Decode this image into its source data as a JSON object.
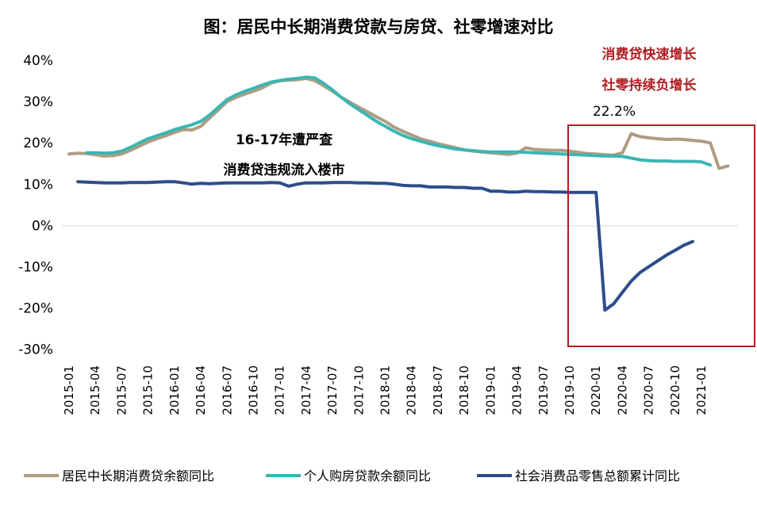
{
  "chart_data": {
    "type": "line",
    "title": "图：居民中长期消费贷款与房贷、社零增速对比",
    "xlabel": "",
    "ylabel": "",
    "ylim": [
      -30,
      40
    ],
    "yticks": [
      "40%",
      "30%",
      "20%",
      "10%",
      "0%",
      "-10%",
      "-20%",
      "-30%"
    ],
    "ytick_values": [
      40,
      30,
      20,
      10,
      0,
      -10,
      -20,
      -30
    ],
    "x_start": "2015-01",
    "x_months": 75,
    "xtick_labels": [
      "2015-01",
      "2015-04",
      "2015-07",
      "2015-10",
      "2016-01",
      "2016-04",
      "2016-07",
      "2016-10",
      "2017-01",
      "2017-04",
      "2017-07",
      "2017-10",
      "2018-01",
      "2018-04",
      "2018-07",
      "2018-10",
      "2019-01",
      "2019-04",
      "2019-07",
      "2019-10",
      "2020-01",
      "2020-04",
      "2020-07",
      "2020-10",
      "2021-01"
    ],
    "series": [
      {
        "name": "居民中长期消费贷余额同比",
        "color": "#b09c82",
        "points": [
          [
            0,
            17.3
          ],
          [
            1,
            17.5
          ],
          [
            2,
            17.4
          ],
          [
            3,
            17.1
          ],
          [
            4,
            16.8
          ],
          [
            5,
            16.9
          ],
          [
            6,
            17.3
          ],
          [
            7,
            18.2
          ],
          [
            8,
            19.2
          ],
          [
            9,
            20.2
          ],
          [
            10,
            21.0
          ],
          [
            11,
            21.7
          ],
          [
            12,
            22.5
          ],
          [
            13,
            23.2
          ],
          [
            14,
            23.1
          ],
          [
            15,
            24.0
          ],
          [
            16,
            26.0
          ],
          [
            17,
            28.0
          ],
          [
            18,
            30.0
          ],
          [
            19,
            31.0
          ],
          [
            20,
            31.8
          ],
          [
            21,
            32.5
          ],
          [
            22,
            33.3
          ],
          [
            23,
            34.5
          ],
          [
            24,
            35.0
          ],
          [
            25,
            35.2
          ],
          [
            26,
            35.3
          ],
          [
            27,
            35.6
          ],
          [
            28,
            35.0
          ],
          [
            29,
            33.8
          ],
          [
            30,
            32.5
          ],
          [
            31,
            31.0
          ],
          [
            32,
            29.8
          ],
          [
            33,
            28.6
          ],
          [
            34,
            27.5
          ],
          [
            35,
            26.3
          ],
          [
            36,
            25.2
          ],
          [
            37,
            23.8
          ],
          [
            38,
            22.8
          ],
          [
            39,
            21.9
          ],
          [
            40,
            21.0
          ],
          [
            41,
            20.4
          ],
          [
            42,
            19.8
          ],
          [
            43,
            19.3
          ],
          [
            44,
            18.8
          ],
          [
            45,
            18.3
          ],
          [
            46,
            18.0
          ],
          [
            47,
            17.8
          ],
          [
            48,
            17.6
          ],
          [
            49,
            17.4
          ],
          [
            50,
            17.2
          ],
          [
            51,
            17.5
          ],
          [
            52,
            18.8
          ],
          [
            53,
            18.4
          ],
          [
            54,
            18.3
          ],
          [
            55,
            18.2
          ],
          [
            56,
            18.2
          ],
          [
            57,
            18.0
          ],
          [
            58,
            17.7
          ],
          [
            59,
            17.4
          ],
          [
            60,
            17.3
          ],
          [
            61,
            17.1
          ],
          [
            62,
            17.0
          ],
          [
            63,
            17.6
          ],
          [
            64,
            22.2
          ],
          [
            65,
            21.5
          ],
          [
            66,
            21.2
          ],
          [
            67,
            21.0
          ],
          [
            68,
            20.8
          ],
          [
            69,
            20.9
          ],
          [
            70,
            20.8
          ],
          [
            71,
            20.6
          ],
          [
            72,
            20.4
          ],
          [
            73,
            20.0
          ],
          [
            74,
            13.8
          ],
          [
            75,
            14.4
          ]
        ]
      },
      {
        "name": "个人购房贷款余额同比",
        "color": "#3bb6b2",
        "points": [
          [
            2,
            17.6
          ],
          [
            3,
            17.6
          ],
          [
            4,
            17.5
          ],
          [
            5,
            17.6
          ],
          [
            6,
            18.0
          ],
          [
            7,
            18.9
          ],
          [
            8,
            20.0
          ],
          [
            9,
            21.0
          ],
          [
            10,
            21.7
          ],
          [
            11,
            22.4
          ],
          [
            12,
            23.2
          ],
          [
            13,
            23.8
          ],
          [
            14,
            24.4
          ],
          [
            15,
            25.2
          ],
          [
            16,
            26.7
          ],
          [
            17,
            28.6
          ],
          [
            18,
            30.5
          ],
          [
            19,
            31.6
          ],
          [
            20,
            32.5
          ],
          [
            21,
            33.2
          ],
          [
            22,
            34.0
          ],
          [
            23,
            34.7
          ],
          [
            24,
            35.1
          ],
          [
            25,
            35.4
          ],
          [
            26,
            35.6
          ],
          [
            27,
            35.9
          ],
          [
            28,
            35.7
          ],
          [
            29,
            34.4
          ],
          [
            30,
            32.8
          ],
          [
            31,
            31.0
          ],
          [
            32,
            29.4
          ],
          [
            33,
            28.0
          ],
          [
            34,
            26.6
          ],
          [
            35,
            25.2
          ],
          [
            36,
            24.0
          ],
          [
            37,
            22.8
          ],
          [
            38,
            21.8
          ],
          [
            39,
            21.0
          ],
          [
            40,
            20.4
          ],
          [
            41,
            19.8
          ],
          [
            42,
            19.3
          ],
          [
            43,
            18.9
          ],
          [
            44,
            18.5
          ],
          [
            45,
            18.3
          ],
          [
            46,
            18.1
          ],
          [
            47,
            17.9
          ],
          [
            48,
            17.8
          ],
          [
            49,
            17.8
          ],
          [
            50,
            17.8
          ],
          [
            51,
            17.8
          ],
          [
            52,
            17.7
          ],
          [
            53,
            17.6
          ],
          [
            54,
            17.5
          ],
          [
            55,
            17.4
          ],
          [
            56,
            17.3
          ],
          [
            57,
            17.2
          ],
          [
            58,
            17.1
          ],
          [
            59,
            17.0
          ],
          [
            60,
            16.9
          ],
          [
            61,
            16.8
          ],
          [
            62,
            16.8
          ],
          [
            63,
            16.7
          ],
          [
            64,
            16.3
          ],
          [
            65,
            15.9
          ],
          [
            66,
            15.7
          ],
          [
            67,
            15.6
          ],
          [
            68,
            15.6
          ],
          [
            69,
            15.5
          ],
          [
            70,
            15.5
          ],
          [
            71,
            15.5
          ],
          [
            72,
            15.4
          ],
          [
            73,
            14.6
          ]
        ]
      },
      {
        "name": "社会消费品零售总额累计同比",
        "color": "#2c4d8a",
        "points": [
          [
            1,
            10.6
          ],
          [
            2,
            10.5
          ],
          [
            3,
            10.4
          ],
          [
            4,
            10.3
          ],
          [
            5,
            10.3
          ],
          [
            6,
            10.3
          ],
          [
            7,
            10.4
          ],
          [
            8,
            10.4
          ],
          [
            9,
            10.4
          ],
          [
            10,
            10.5
          ],
          [
            11,
            10.6
          ],
          [
            12,
            10.6
          ],
          [
            13,
            10.3
          ],
          [
            14,
            10.0
          ],
          [
            15,
            10.2
          ],
          [
            16,
            10.1
          ],
          [
            17,
            10.2
          ],
          [
            18,
            10.3
          ],
          [
            19,
            10.3
          ],
          [
            20,
            10.3
          ],
          [
            21,
            10.3
          ],
          [
            22,
            10.3
          ],
          [
            23,
            10.4
          ],
          [
            24,
            10.3
          ],
          [
            25,
            9.5
          ],
          [
            26,
            10.0
          ],
          [
            27,
            10.3
          ],
          [
            28,
            10.3
          ],
          [
            29,
            10.3
          ],
          [
            30,
            10.4
          ],
          [
            31,
            10.4
          ],
          [
            32,
            10.4
          ],
          [
            33,
            10.3
          ],
          [
            34,
            10.3
          ],
          [
            35,
            10.2
          ],
          [
            36,
            10.2
          ],
          [
            37,
            10.0
          ],
          [
            38,
            9.7
          ],
          [
            39,
            9.6
          ],
          [
            40,
            9.6
          ],
          [
            41,
            9.3
          ],
          [
            42,
            9.3
          ],
          [
            43,
            9.3
          ],
          [
            44,
            9.2
          ],
          [
            45,
            9.2
          ],
          [
            46,
            9.0
          ],
          [
            47,
            9.0
          ],
          [
            48,
            8.3
          ],
          [
            49,
            8.3
          ],
          [
            50,
            8.1
          ],
          [
            51,
            8.1
          ],
          [
            52,
            8.3
          ],
          [
            53,
            8.2
          ],
          [
            54,
            8.2
          ],
          [
            55,
            8.1
          ],
          [
            56,
            8.1
          ],
          [
            57,
            8.0
          ],
          [
            58,
            8.0
          ],
          [
            59,
            8.0
          ],
          [
            60,
            8.0
          ],
          [
            61,
            -20.5
          ],
          [
            62,
            -19.0
          ],
          [
            63,
            -16.2
          ],
          [
            64,
            -13.5
          ],
          [
            65,
            -11.4
          ],
          [
            66,
            -10.0
          ],
          [
            67,
            -8.6
          ],
          [
            68,
            -7.2
          ],
          [
            69,
            -6.0
          ],
          [
            70,
            -4.8
          ],
          [
            71,
            -3.9
          ]
        ]
      }
    ],
    "annotations": {
      "peak_label": "22.2%",
      "mid_line1": "16-17年遭严查",
      "mid_line2": "消费贷违规流入楼市",
      "red_line1": "消费贷快速增长",
      "red_line2": "社零持续负增长"
    },
    "legend_position": "bottom",
    "grid": false
  }
}
